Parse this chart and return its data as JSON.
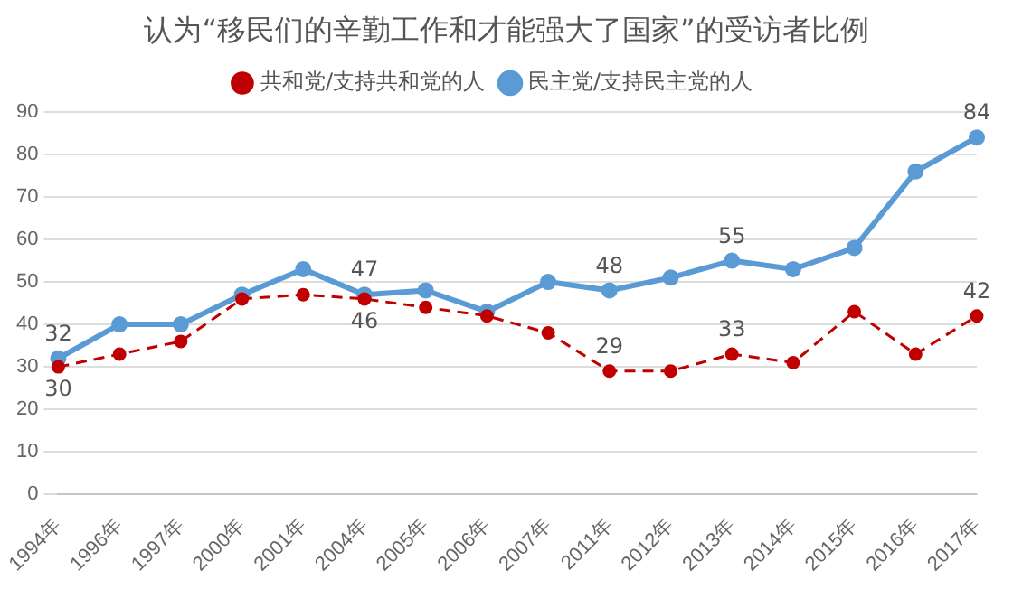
{
  "chart_data": {
    "type": "line",
    "title": "认为“移民们的辛勤工作和才能强大了国家”的受访者比例",
    "categories": [
      "1994年",
      "1996年",
      "1997年",
      "2000年",
      "2001年",
      "2004年",
      "2005年",
      "2006年",
      "2007年",
      "2011年",
      "2012年",
      "2013年",
      "2014年",
      "2015年",
      "2016年",
      "2017年"
    ],
    "series": [
      {
        "name": "民主党/支持民主党的人",
        "color": "#5b9bd5",
        "line_style": "solid",
        "values": [
          32,
          40,
          40,
          47,
          53,
          47,
          48,
          43,
          50,
          48,
          51,
          55,
          53,
          58,
          76,
          84
        ],
        "value_labels": [
          "32",
          null,
          null,
          null,
          null,
          "47",
          null,
          null,
          null,
          "48",
          null,
          "55",
          null,
          null,
          null,
          "84"
        ]
      },
      {
        "name": "共和党/支持共和党的人",
        "color": "#c00000",
        "line_style": "dashed",
        "values": [
          30,
          33,
          36,
          46,
          47,
          46,
          44,
          42,
          38,
          29,
          29,
          33,
          31,
          43,
          33,
          42
        ],
        "value_labels": [
          "30",
          null,
          null,
          null,
          null,
          "46",
          null,
          null,
          null,
          "29",
          null,
          "33",
          null,
          null,
          null,
          "42"
        ]
      }
    ],
    "ylim": [
      0,
      90
    ],
    "yticks": [
      0,
      10,
      20,
      30,
      40,
      50,
      60,
      70,
      80,
      90
    ],
    "grid": "y",
    "legend": "top",
    "marker": "circle"
  }
}
